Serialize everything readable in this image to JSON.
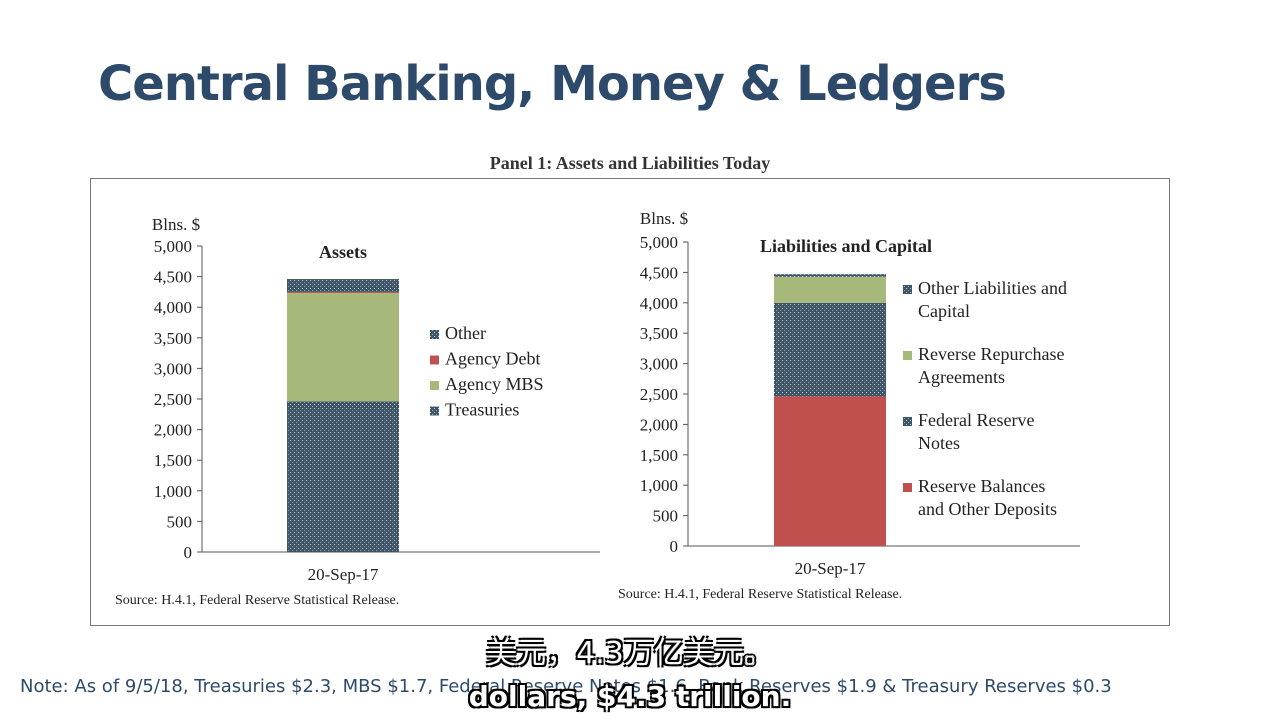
{
  "slide": {
    "title": "Central Banking, Money & Ledgers",
    "panel_title": "Panel 1: Assets and Liabilities Today",
    "note": "Note: As of 9/5/18, Treasuries $2.3, MBS $1.7, Federal Reserve Notes $1.6, Bank Reserves $1.9 & Treasury Reserves $0.3",
    "caption_cn": "美元，4.3万亿美元。",
    "caption_en": "dollars, $4.3 trillion."
  },
  "chart_data": [
    {
      "type": "bar",
      "stacked": true,
      "title": "Assets",
      "ylabel": "Blns. $",
      "ylim": [
        0,
        5000
      ],
      "yticks": [
        "0",
        "500",
        "1,000",
        "1,500",
        "2,000",
        "2,500",
        "3,000",
        "3,500",
        "4,000",
        "4,500",
        "5,000"
      ],
      "categories": [
        "20-Sep-17"
      ],
      "series": [
        {
          "name": "Treasuries",
          "values": [
            2460
          ],
          "color": "#3d5566",
          "pattern": true
        },
        {
          "name": "Agency MBS",
          "values": [
            1780
          ],
          "color": "#a6b97a",
          "pattern": false
        },
        {
          "name": "Agency Debt",
          "values": [
            10
          ],
          "color": "#c0504d",
          "pattern": false
        },
        {
          "name": "Other",
          "values": [
            210
          ],
          "color": "#3d5566",
          "pattern": true
        }
      ],
      "legend_order": [
        "Other",
        "Agency Debt",
        "Agency MBS",
        "Treasuries"
      ],
      "source": "Source: H.4.1, Federal Reserve Statistical Release."
    },
    {
      "type": "bar",
      "stacked": true,
      "title": "Liabilities and Capital",
      "ylabel": "Blns. $",
      "ylim": [
        0,
        5000
      ],
      "yticks": [
        "0",
        "500",
        "1,000",
        "1,500",
        "2,000",
        "2,500",
        "3,000",
        "3,500",
        "4,000",
        "4,500",
        "5,000"
      ],
      "categories": [
        "20-Sep-17"
      ],
      "series": [
        {
          "name": "Reserve Balances and Other Deposits",
          "values": [
            2460
          ],
          "color": "#c0504d",
          "pattern": false
        },
        {
          "name": "Federal Reserve Notes",
          "values": [
            1540
          ],
          "color": "#3d5566",
          "pattern": true
        },
        {
          "name": "Reverse Repurchase Agreements",
          "values": [
            430
          ],
          "color": "#a6b97a",
          "pattern": false
        },
        {
          "name": "Other Liabilities and Capital",
          "values": [
            40
          ],
          "color": "#3d5566",
          "pattern": true
        }
      ],
      "legend_order": [
        "Other Liabilities and Capital",
        "Reverse Repurchase Agreements",
        "Federal Reserve Notes",
        "Reserve Balances and Other Deposits"
      ],
      "legend_lines": [
        [
          "Other Liabilities and",
          "Capital"
        ],
        [
          "Reverse Repurchase",
          "Agreements"
        ],
        [
          "Federal Reserve",
          "Notes"
        ],
        [
          "Reserve Balances",
          "and Other Deposits"
        ]
      ],
      "source": "Source: H.4.1, Federal Reserve Statistical Release."
    }
  ]
}
